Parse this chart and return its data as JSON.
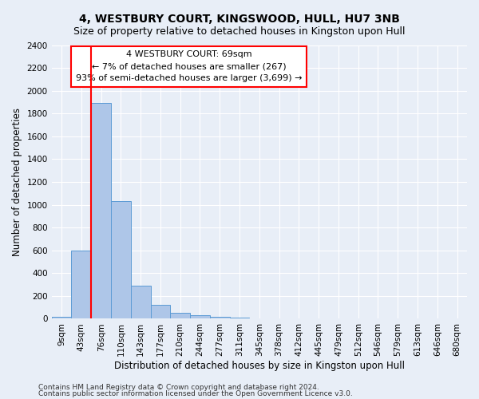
{
  "title": "4, WESTBURY COURT, KINGSWOOD, HULL, HU7 3NB",
  "subtitle": "Size of property relative to detached houses in Kingston upon Hull",
  "xlabel": "Distribution of detached houses by size in Kingston upon Hull",
  "ylabel": "Number of detached properties",
  "footnote1": "Contains HM Land Registry data © Crown copyright and database right 2024.",
  "footnote2": "Contains public sector information licensed under the Open Government Licence v3.0.",
  "annotation_line1": "4 WESTBURY COURT: 69sqm",
  "annotation_line2": "← 7% of detached houses are smaller (267)",
  "annotation_line3": "93% of semi-detached houses are larger (3,699) →",
  "bar_color": "#aec6e8",
  "bar_edge_color": "#5b9bd5",
  "marker_color": "red",
  "categories": [
    "9sqm",
    "43sqm",
    "76sqm",
    "110sqm",
    "143sqm",
    "177sqm",
    "210sqm",
    "244sqm",
    "277sqm",
    "311sqm",
    "345sqm",
    "378sqm",
    "412sqm",
    "445sqm",
    "479sqm",
    "512sqm",
    "546sqm",
    "579sqm",
    "613sqm",
    "646sqm",
    "680sqm"
  ],
  "values": [
    20,
    600,
    1890,
    1030,
    290,
    120,
    50,
    30,
    20,
    10,
    5,
    3,
    2,
    2,
    1,
    1,
    0,
    0,
    0,
    0,
    0
  ],
  "ylim": [
    0,
    2400
  ],
  "yticks": [
    0,
    200,
    400,
    600,
    800,
    1000,
    1200,
    1400,
    1600,
    1800,
    2000,
    2200,
    2400
  ],
  "background_color": "#e8eef7",
  "grid_color": "#ffffff",
  "title_fontsize": 10,
  "subtitle_fontsize": 9,
  "axis_label_fontsize": 8.5,
  "tick_fontsize": 7.5,
  "annotation_fontsize": 8,
  "footnote_fontsize": 6.5
}
